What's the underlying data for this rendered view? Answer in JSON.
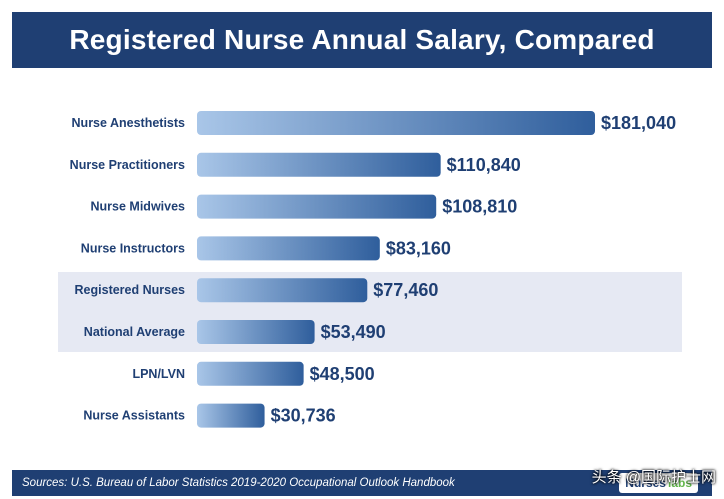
{
  "header": {
    "title": "Registered Nurse Annual Salary, Compared"
  },
  "chart_data": {
    "type": "bar",
    "orientation": "horizontal",
    "title": "Registered Nurse Annual Salary, Compared",
    "categories": [
      "Nurse Anesthetists",
      "Nurse Practitioners",
      "Nurse Midwives",
      "Nurse Instructors",
      "Registered Nurses",
      "National Average",
      "LPN/LVN",
      "Nurse Assistants"
    ],
    "values": [
      181040,
      110840,
      108810,
      83160,
      77460,
      53490,
      48500,
      30736
    ],
    "value_labels": [
      "$181,040",
      "$110,840",
      "$108,810",
      "$83,160",
      "$77,460",
      "$53,490",
      "$48,500",
      "$30,736"
    ],
    "highlighted": [
      "Registered Nurses",
      "National Average"
    ],
    "xlim": [
      0,
      181040
    ],
    "bar_color_start": "#a9c6e8",
    "bar_color_end": "#2f5e9c",
    "label_color": "#1f3f73"
  },
  "footer": {
    "source": "Sources: U.S. Bureau of Labor Statistics 2019-2020 Occupational Outlook Handbook",
    "brand_part1": "Nurses",
    "brand_part2": "labs"
  },
  "watermark": "头条 @国际护士网"
}
